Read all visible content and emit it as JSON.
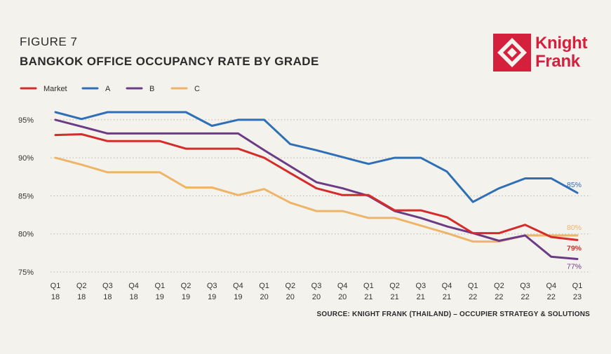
{
  "header": {
    "figure": "FIGURE 7",
    "title": "BANGKOK OFFICE OCCUPANCY RATE BY GRADE"
  },
  "logo": {
    "line1": "Knight",
    "line2": "Frank",
    "color": "#d41f3d"
  },
  "source": "SOURCE: KNIGHT FRANK (THAILAND) – OCCUPIER STRATEGY & SOLUTIONS",
  "chart_data": {
    "type": "line",
    "title": "BANGKOK OFFICE OCCUPANCY RATE BY GRADE",
    "xlabel": "",
    "ylabel": "",
    "ylim": [
      75,
      96
    ],
    "yticks": [
      75,
      80,
      85,
      90,
      95
    ],
    "ytick_labels": [
      "75%",
      "80%",
      "85%",
      "90%",
      "95%"
    ],
    "grid": "horizontal dotted",
    "legend_position": "top-left",
    "categories": [
      [
        "Q1",
        "18"
      ],
      [
        "Q2",
        "18"
      ],
      [
        "Q3",
        "18"
      ],
      [
        "Q4",
        "18"
      ],
      [
        "Q1",
        "19"
      ],
      [
        "Q2",
        "19"
      ],
      [
        "Q3",
        "19"
      ],
      [
        "Q4",
        "19"
      ],
      [
        "Q1",
        "20"
      ],
      [
        "Q2",
        "20"
      ],
      [
        "Q3",
        "20"
      ],
      [
        "Q4",
        "20"
      ],
      [
        "Q1",
        "21"
      ],
      [
        "Q2",
        "21"
      ],
      [
        "Q3",
        "21"
      ],
      [
        "Q4",
        "21"
      ],
      [
        "Q1",
        "22"
      ],
      [
        "Q2",
        "22"
      ],
      [
        "Q3",
        "22"
      ],
      [
        "Q4",
        "22"
      ],
      [
        "Q1",
        "23"
      ]
    ],
    "series": [
      {
        "name": "Market",
        "color": "#d52b2b",
        "end_label": "79%",
        "values": [
          93,
          93.1,
          92.2,
          92.2,
          92.2,
          91.2,
          91.2,
          91.2,
          90,
          88,
          86,
          85.1,
          85.1,
          83.1,
          83.1,
          82.2,
          80.1,
          80.1,
          81.2,
          79.6,
          79.2
        ]
      },
      {
        "name": "A",
        "color": "#2e6fb6",
        "end_label": "85%",
        "values": [
          96,
          95.1,
          96,
          96,
          96,
          96,
          94.2,
          95,
          95,
          91.8,
          91,
          90.1,
          89.2,
          90,
          90,
          88.2,
          84.2,
          86,
          87.3,
          87.3,
          85.4
        ]
      },
      {
        "name": "B",
        "color": "#6c3b85",
        "end_label": "77%",
        "values": [
          95,
          94.1,
          93.2,
          93.2,
          93.2,
          93.2,
          93.2,
          93.2,
          91,
          88.9,
          86.8,
          86,
          85,
          83,
          82.1,
          81,
          80.1,
          79.1,
          79.8,
          77,
          76.7
        ]
      },
      {
        "name": "C",
        "color": "#eeb468",
        "end_label": "80%",
        "values": [
          90,
          89.1,
          88.1,
          88.1,
          88.1,
          86.1,
          86.1,
          85.1,
          85.9,
          84.1,
          83,
          83,
          82.1,
          82.1,
          81.1,
          80.1,
          79,
          79,
          79.8,
          79.8,
          79.8
        ]
      }
    ]
  }
}
